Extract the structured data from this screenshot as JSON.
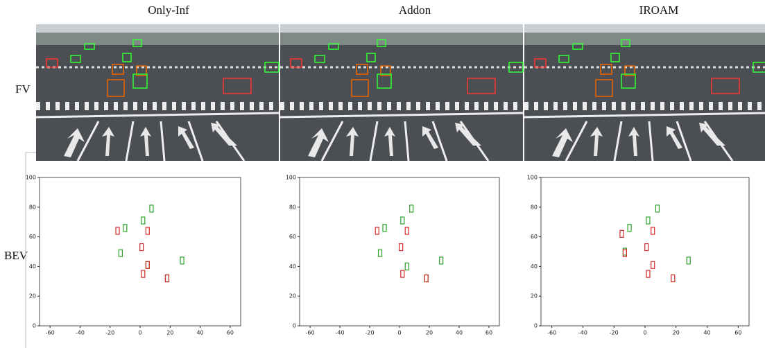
{
  "column_titles": [
    "Only-Inf",
    "Addon",
    "IROAM"
  ],
  "row_labels": [
    "FV",
    "BEV"
  ],
  "chart_data": [
    {
      "type": "scatter",
      "xlim": [
        -67,
        67
      ],
      "ylim": [
        0,
        100
      ],
      "xticks": [
        -60,
        -40,
        -20,
        0,
        20,
        40,
        60
      ],
      "yticks": [
        0,
        20,
        40,
        60,
        80,
        100
      ],
      "series": [
        {
          "color": "#2ca02c",
          "x": [
            7.6,
            2,
            -10,
            -13,
            28,
            5,
            18
          ],
          "values": [
            79,
            71,
            66,
            49,
            44,
            41,
            32
          ]
        },
        {
          "color": "#d62728",
          "x": [
            -15,
            5,
            1,
            5,
            2,
            18
          ],
          "values": [
            64,
            64,
            53,
            41,
            35,
            32
          ]
        }
      ]
    },
    {
      "type": "scatter",
      "xlim": [
        -67,
        67
      ],
      "ylim": [
        0,
        100
      ],
      "xticks": [
        -60,
        -40,
        -20,
        0,
        20,
        40,
        60
      ],
      "yticks": [
        0,
        20,
        40,
        60,
        80,
        100
      ],
      "series": [
        {
          "color": "#2ca02c",
          "x": [
            8,
            2,
            -10,
            -13,
            28,
            5,
            18
          ],
          "values": [
            79,
            71,
            66,
            49,
            44,
            40,
            32
          ]
        },
        {
          "color": "#d62728",
          "x": [
            -15,
            5,
            1,
            2,
            18
          ],
          "values": [
            64,
            64,
            53,
            35,
            32
          ]
        }
      ]
    },
    {
      "type": "scatter",
      "xlim": [
        -67,
        67
      ],
      "ylim": [
        0,
        100
      ],
      "xticks": [
        -60,
        -40,
        -20,
        0,
        20,
        40,
        60
      ],
      "yticks": [
        0,
        20,
        40,
        60,
        80,
        100
      ],
      "series": [
        {
          "color": "#2ca02c",
          "x": [
            8,
            2,
            -10,
            28,
            -13
          ],
          "values": [
            79,
            71,
            66,
            44,
            50
          ]
        },
        {
          "color": "#d62728",
          "x": [
            -15,
            5,
            1,
            -13,
            5,
            2,
            18
          ],
          "values": [
            62,
            64,
            53,
            49,
            41,
            35,
            32
          ]
        }
      ]
    }
  ]
}
